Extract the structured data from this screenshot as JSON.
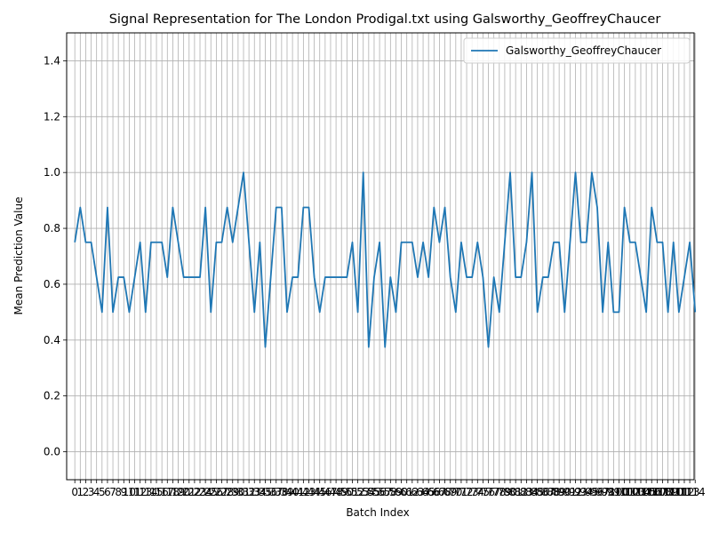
{
  "chart_data": {
    "type": "line",
    "title": "Signal Representation for The London Prodigal.txt using Galsworthy_GeoffreyChaucer",
    "xlabel": "Batch Index",
    "ylabel": "Mean Prediction Value",
    "ylim": [
      -0.1,
      1.5
    ],
    "xlim": [
      -1.5,
      113.8
    ],
    "yticks": [
      "0.0",
      "0.2",
      "0.4",
      "0.6",
      "0.8",
      "1.0",
      "1.2",
      "1.4"
    ],
    "ytick_values": [
      0.0,
      0.2,
      0.4,
      0.6,
      0.8,
      1.0,
      1.2,
      1.4
    ],
    "grid": true,
    "legend_position": "top-right",
    "line_color": "#1f77b4",
    "grid_color": "#b0b0b0",
    "series": [
      {
        "name": "Galsworthy_GeoffreyChaucer",
        "values": [
          0.75,
          0.875,
          0.75,
          0.75,
          0.625,
          0.5,
          0.875,
          0.5,
          0.625,
          0.625,
          0.5,
          0.625,
          0.75,
          0.5,
          0.75,
          0.75,
          0.75,
          0.625,
          0.875,
          0.75,
          0.625,
          0.625,
          0.625,
          0.625,
          0.875,
          0.5,
          0.75,
          0.75,
          0.875,
          0.75,
          0.875,
          1.0,
          0.75,
          0.5,
          0.75,
          0.375,
          0.625,
          0.875,
          0.875,
          0.5,
          0.625,
          0.625,
          0.875,
          0.875,
          0.625,
          0.5,
          0.625,
          0.625,
          0.625,
          0.625,
          0.625,
          0.75,
          0.5,
          1.0,
          0.375,
          0.625,
          0.75,
          0.375,
          0.625,
          0.5,
          0.75,
          0.75,
          0.75,
          0.625,
          0.75,
          0.625,
          0.875,
          0.75,
          0.875,
          0.625,
          0.5,
          0.75,
          0.625,
          0.625,
          0.75,
          0.625,
          0.375,
          0.625,
          0.5,
          0.75,
          1.0,
          0.625,
          0.625,
          0.75,
          1.0,
          0.5,
          0.625,
          0.625,
          0.75,
          0.75,
          0.5,
          0.75,
          1.0,
          0.75,
          0.75,
          1.0,
          0.875,
          0.5,
          0.75,
          0.5,
          0.5,
          0.875,
          0.75,
          0.75,
          0.625,
          0.5,
          0.875,
          0.75,
          0.75,
          0.5,
          0.75,
          0.5,
          0.625,
          0.75,
          0.5
        ]
      }
    ]
  }
}
